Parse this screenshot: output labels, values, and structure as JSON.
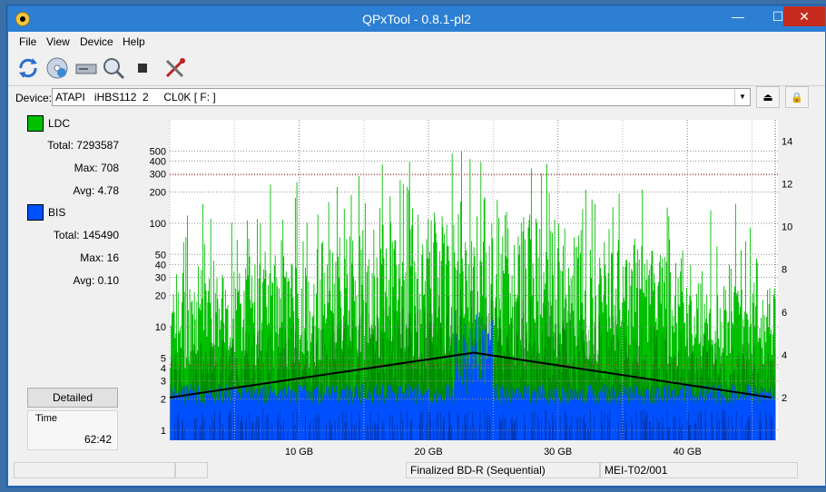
{
  "window": {
    "title": "QPxTool - 0.8.1-pl2",
    "min_glyph": "—",
    "max_glyph": "☐",
    "close_glyph": "✕"
  },
  "menu": [
    "File",
    "View",
    "Device",
    "Help"
  ],
  "toolbar": {
    "icons": [
      "refresh-icon",
      "disc-info-icon",
      "drive-icon",
      "scan-icon",
      "stop-icon",
      "tools-icon"
    ]
  },
  "device": {
    "label": "Device:",
    "selected": "ATAPI   iHBS112  2     CL0K [ F: ]",
    "eject_glyph": "⏏",
    "lock_glyph": "🔒"
  },
  "legend": {
    "ldc": {
      "name": "LDC",
      "color": "#00c000",
      "total_label": "Total:",
      "total": "7293587",
      "max_label": "Max:",
      "max": "708",
      "avg_label": "Avg:",
      "avg": "4.78"
    },
    "bis": {
      "name": "BIS",
      "color": "#0050ff",
      "total_label": "Total:",
      "total": "145490",
      "max_label": "Max:",
      "max": "16",
      "avg_label": "Avg:",
      "avg": "0.10"
    }
  },
  "detailed_label": "Detailed",
  "time": {
    "label": "Time",
    "value": "62:42"
  },
  "status": {
    "cell1": "",
    "cell2": "",
    "cell3": "Finalized BD-R (Sequential)",
    "cell4": "MEI-T02/001"
  },
  "chart_data": {
    "type": "bar",
    "x_unit": "GB",
    "xlim": [
      0,
      47
    ],
    "x_ticks": [
      "10 GB",
      "20 GB",
      "30 GB",
      "40 GB"
    ],
    "x_tick_values": [
      10,
      20,
      30,
      40
    ],
    "y_left_scale": "log",
    "y_left_ticks": [
      1,
      2,
      3,
      4,
      5,
      10,
      20,
      30,
      40,
      50,
      100,
      200,
      300,
      400,
      500
    ],
    "ylim_left": [
      0.8,
      1000
    ],
    "y_right_ticks": [
      2,
      4,
      6,
      8,
      10,
      12,
      14
    ],
    "ylim_right": [
      0,
      15
    ],
    "series": [
      {
        "name": "LDC",
        "color": "#00c000",
        "axis": "left"
      },
      {
        "name": "BIS",
        "color": "#0050ff",
        "axis": "left"
      },
      {
        "name": "Speed",
        "color": "#000000",
        "axis": "right",
        "x": [
          0,
          23.5,
          46.5
        ],
        "y": [
          2,
          4.1,
          2
        ]
      }
    ],
    "grid": true
  }
}
